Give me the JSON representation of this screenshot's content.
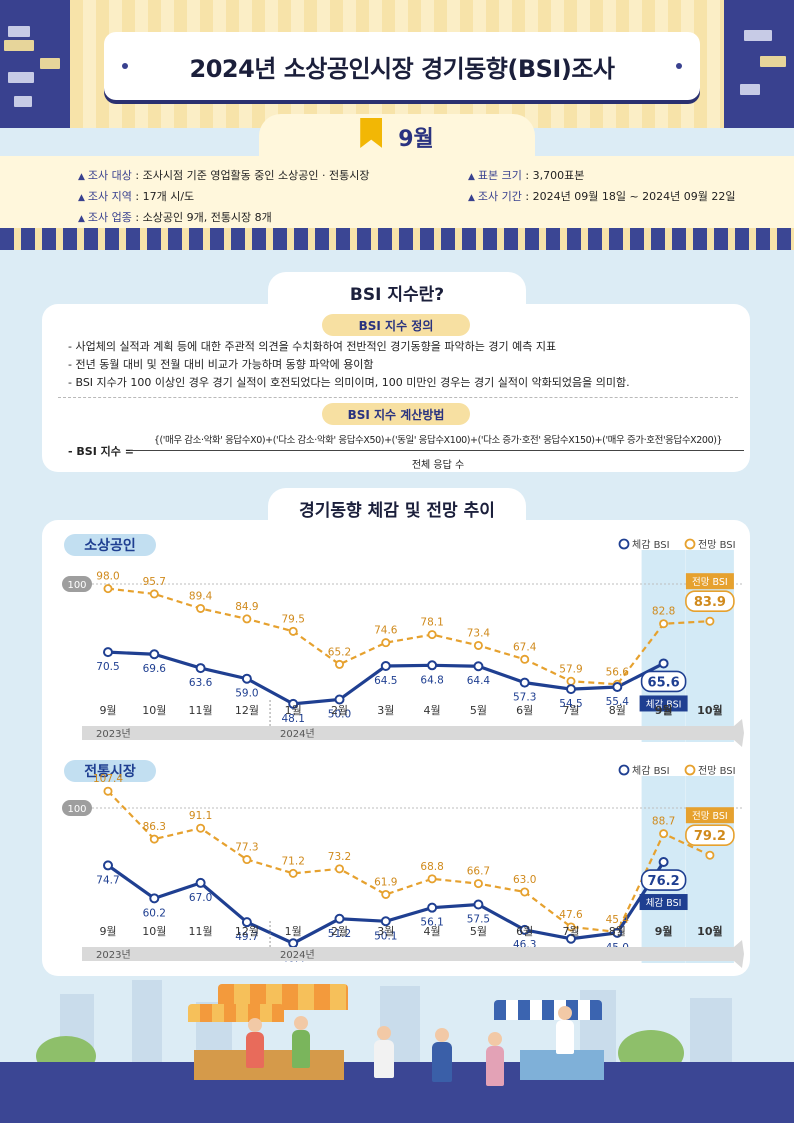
{
  "header": {
    "title": "2024년 소상공인시장 경기동향(BSI)조사",
    "month": "9월"
  },
  "survey_info": {
    "left": [
      {
        "key": "조사 대상",
        "value": " : 조사시점 기준 영업활동 중인 소상공인 · 전통시장"
      },
      {
        "key": "조사 지역",
        "value": " : 17개 시/도"
      },
      {
        "key": "조사 업종",
        "value": " : 소상공인 9개, 전통시장 8개"
      }
    ],
    "right": [
      {
        "key": "표본 크기",
        "value": " : 3,700표본"
      },
      {
        "key": "조사 기간",
        "value": " : 2024년 09월 18일 ~ 2024년 09월 22일"
      }
    ]
  },
  "bsi_section": {
    "title": "BSI 지수란?",
    "def_title": "BSI 지수 정의",
    "def_lines": [
      "- 사업체의 실적과 계획 등에 대한 주관적 의견을 수치화하여 전반적인 경기동향을 파악하는 경기 예측 지표",
      "- 전년 동월 대비 및 전월 대비 비교가 가능하며 동향 파악에 용이함",
      "- BSI 지수가 100 이상인 경우 경기 실적이 호전되었다는 의미이며, 100 미만인 경우는 경기 실적이 악화되었음을 의미함."
    ],
    "calc_title": "BSI 지수 계산방법",
    "formula_label": "- BSI 지수 =",
    "formula_numerator": "{('매우 감소·악화' 응답수X0)+('다소 감소·악화' 응답수X50)+('동일' 응답수X100)+('다소 증가·호전' 응답수X150)+('매우 증가·호전'응답수X200)}",
    "formula_denominator": "전체 응답 수"
  },
  "trend_section": {
    "title": "경기동향 체감 및 전망 추이"
  },
  "chart_data": [
    {
      "type": "line",
      "title": "소상공인",
      "categories": [
        "9월",
        "10월",
        "11월",
        "12월",
        "1월",
        "2월",
        "3월",
        "4월",
        "5월",
        "6월",
        "7월",
        "8월",
        "9월",
        "10월"
      ],
      "year_labels": [
        "2023년",
        "2024년"
      ],
      "reference_line": {
        "label": "100",
        "value": 100
      },
      "legend": [
        "체감 BSI",
        "전망 BSI"
      ],
      "series": [
        {
          "name": "체감 BSI",
          "color": "#1f3f91",
          "values": [
            70.5,
            69.6,
            63.6,
            59.0,
            48.1,
            50.0,
            64.5,
            64.8,
            64.4,
            57.3,
            54.5,
            55.4,
            65.6,
            null
          ]
        },
        {
          "name": "전망 BSI",
          "color": "#e6a12e",
          "values": [
            98.0,
            95.7,
            89.4,
            84.9,
            79.5,
            65.2,
            74.6,
            78.1,
            73.4,
            67.4,
            57.9,
            56.6,
            82.8,
            83.9
          ]
        }
      ],
      "highlight": {
        "actual_label": "체감 BSI",
        "actual_value": "65.6",
        "forecast_label": "전망 BSI",
        "forecast_value": "83.9"
      }
    },
    {
      "type": "line",
      "title": "전통시장",
      "categories": [
        "9월",
        "10월",
        "11월",
        "12월",
        "1월",
        "2월",
        "3월",
        "4월",
        "5월",
        "6월",
        "7월",
        "8월",
        "9월",
        "10월"
      ],
      "year_labels": [
        "2023년",
        "2024년"
      ],
      "reference_line": {
        "label": "100",
        "value": 100
      },
      "legend": [
        "체감 BSI",
        "전망 BSI"
      ],
      "series": [
        {
          "name": "체감 BSI",
          "color": "#1f3f91",
          "values": [
            74.7,
            60.2,
            67.0,
            49.7,
            40.4,
            51.2,
            50.1,
            56.1,
            57.5,
            46.3,
            42.4,
            45.0,
            76.2,
            null
          ]
        },
        {
          "name": "전망 BSI",
          "color": "#e6a12e",
          "values": [
            107.4,
            86.3,
            91.1,
            77.3,
            71.2,
            73.2,
            61.9,
            68.8,
            66.7,
            63.0,
            47.6,
            45.4,
            88.7,
            79.2
          ]
        }
      ],
      "highlight": {
        "actual_label": "체감 BSI",
        "actual_value": "76.2",
        "forecast_label": "전망 BSI",
        "forecast_value": "79.2"
      }
    }
  ]
}
